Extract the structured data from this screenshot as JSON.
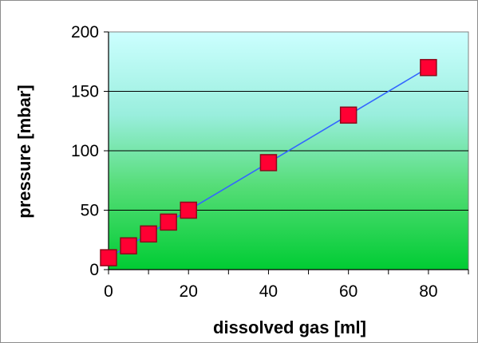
{
  "chart_data": {
    "type": "scatter",
    "title": "",
    "xlabel": "dissolved gas [ml]",
    "ylabel": "pressure [mbar]",
    "xlim": [
      0,
      90
    ],
    "ylim": [
      0,
      200
    ],
    "x_ticks": [
      0,
      20,
      40,
      60,
      80
    ],
    "y_ticks": [
      0,
      50,
      100,
      150,
      200
    ],
    "grid": "horizontal",
    "series": [
      {
        "x": [
          0,
          5,
          10,
          15,
          20,
          40,
          60,
          80
        ],
        "y": [
          10,
          20,
          30,
          40,
          50,
          90,
          130,
          170
        ],
        "marker": "square",
        "marker_color": "#ff0033",
        "line_color": "#3366ff"
      }
    ],
    "background_gradient": [
      "#ccffff",
      "#00cc33"
    ]
  }
}
